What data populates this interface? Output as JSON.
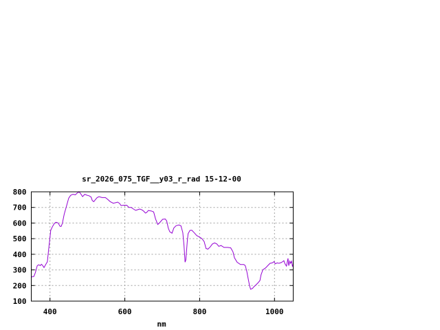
{
  "chart_data": {
    "type": "line",
    "title": "sr_2026_075_TGF__y03_r_rad 15-12-00",
    "xlabel": "nm",
    "ylabel": "",
    "xlim": [
      350,
      1050
    ],
    "ylim": [
      100,
      800
    ],
    "xticks": [
      400,
      600,
      800,
      1000
    ],
    "yticks": [
      100,
      200,
      300,
      400,
      500,
      600,
      700,
      800
    ],
    "grid": true,
    "line_color": "#9400d3",
    "series": [
      {
        "x": [
          350,
          357,
          361,
          366,
          370,
          374,
          377,
          380,
          384,
          389,
          393,
          396,
          399,
          402,
          407,
          412,
          416,
          421,
          424,
          427,
          430,
          433,
          438,
          444,
          450,
          455,
          461,
          468,
          473,
          478,
          482,
          487,
          493,
          499,
          505,
          510,
          513,
          517,
          522,
          526,
          531,
          539,
          548,
          554,
          561,
          569,
          575,
          581,
          586,
          590,
          596,
          605,
          611,
          617,
          623,
          629,
          635,
          640,
          646,
          651,
          655,
          658,
          663,
          668,
          670,
          677,
          682,
          688,
          693,
          701,
          708,
          712,
          716,
          720,
          726,
          731,
          737,
          745,
          750,
          755,
          758,
          761,
          763,
          767,
          769,
          774,
          779,
          785,
          792,
          800,
          806,
          812,
          817,
          822,
          828,
          834,
          840,
          846,
          851,
          857,
          865,
          875,
          883,
          889,
          893,
          900,
          909,
          918,
          922,
          926,
          930,
          933,
          936,
          941,
          945,
          950,
          956,
          961,
          964,
          969,
          976,
          982,
          988,
          994,
          999,
          1002,
          1007,
          1012,
          1018,
          1022,
          1025,
          1028,
          1032,
          1036,
          1038,
          1041,
          1043,
          1046,
          1048,
          1049
        ],
        "y": [
          254,
          258,
          283,
          327,
          333,
          327,
          336,
          330,
          315,
          336,
          352,
          422,
          488,
          554,
          579,
          598,
          605,
          602,
          591,
          579,
          579,
          598,
          657,
          708,
          759,
          777,
          784,
          781,
          793,
          799,
          788,
          769,
          784,
          778,
          774,
          766,
          744,
          737,
          752,
          763,
          769,
          763,
          763,
          752,
          737,
          727,
          730,
          734,
          725,
          712,
          714,
          714,
          700,
          700,
          690,
          681,
          686,
          690,
          684,
          675,
          664,
          667,
          681,
          678,
          678,
          671,
          627,
          591,
          602,
          624,
          626,
          613,
          569,
          544,
          535,
          569,
          583,
          588,
          582,
          539,
          459,
          349,
          364,
          488,
          532,
          553,
          554,
          539,
          520,
          510,
          500,
          481,
          437,
          433,
          447,
          466,
          473,
          466,
          451,
          456,
          444,
          444,
          441,
          415,
          378,
          349,
          334,
          334,
          327,
          290,
          239,
          203,
          176,
          181,
          192,
          203,
          217,
          232,
          268,
          301,
          312,
          327,
          342,
          345,
          353,
          339,
          345,
          342,
          347,
          353,
          359,
          339,
          324,
          374,
          327,
          356,
          342,
          356,
          321,
          334
        ]
      }
    ]
  }
}
